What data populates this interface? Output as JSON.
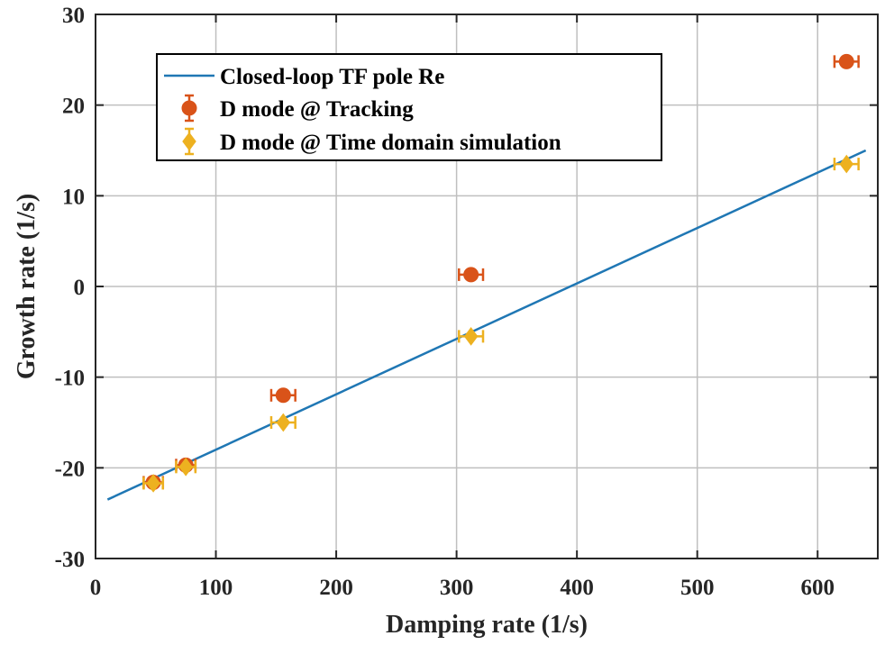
{
  "colors": {
    "line": "#1f77b4",
    "tracking": "#d95319",
    "simulation": "#edb120",
    "grid": "#bfbfbf",
    "axis": "#262626"
  },
  "chart_data": {
    "type": "scatter",
    "title": "",
    "xlabel": "Damping rate (1/s)",
    "ylabel": "Growth rate (1/s)",
    "xlim": [
      0,
      650
    ],
    "ylim": [
      -30,
      30
    ],
    "xticks": [
      "0",
      "100",
      "200",
      "300",
      "400",
      "500",
      "600"
    ],
    "yticks": [
      "-30",
      "-20",
      "-10",
      "0",
      "10",
      "20",
      "30"
    ],
    "grid": true,
    "legend_position": "top-left",
    "series": [
      {
        "name": "Closed-loop TF pole Re",
        "type": "line",
        "x": [
          10,
          640
        ],
        "y": [
          -23.5,
          15
        ]
      },
      {
        "name": "D mode @ Tracking",
        "type": "errorbar",
        "marker": "circle",
        "x": [
          48,
          75,
          156,
          312,
          624
        ],
        "y": [
          -21.6,
          -19.7,
          -12,
          1.3,
          24.8
        ],
        "xerr": [
          8,
          8,
          10,
          10,
          10
        ]
      },
      {
        "name": "D mode @ Time domain simulation",
        "type": "errorbar",
        "marker": "diamond",
        "x": [
          48,
          75,
          156,
          312,
          624
        ],
        "y": [
          -21.7,
          -19.9,
          -15,
          -5.5,
          13.5
        ],
        "xerr": [
          8,
          8,
          10,
          10,
          10
        ]
      }
    ]
  }
}
